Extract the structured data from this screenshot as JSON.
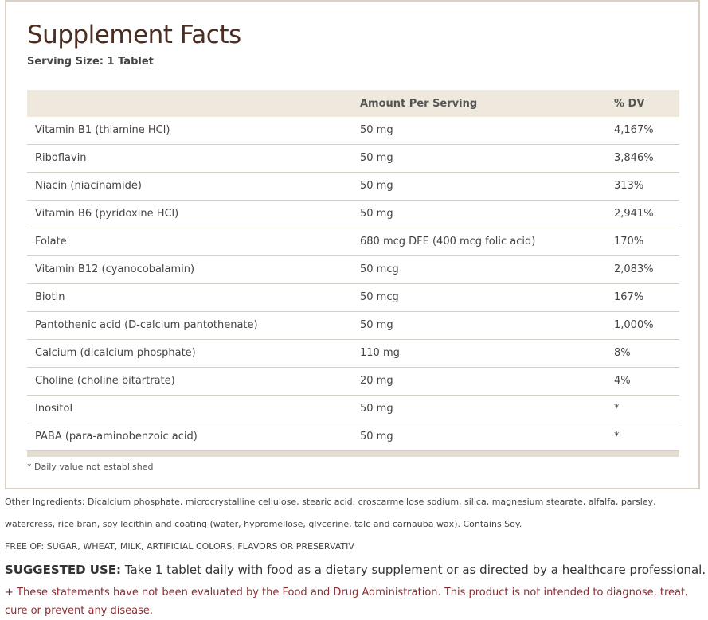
{
  "title": "Supplement Facts",
  "serving_size": "Serving Size: 1 Tablet",
  "table": {
    "headers": [
      "",
      "Amount Per Serving",
      "% DV"
    ],
    "rows": [
      {
        "name": "Vitamin B1 (thiamine HCl)",
        "amount": "50 mg",
        "dv": "4,167%"
      },
      {
        "name": "Riboflavin",
        "amount": "50 mg",
        "dv": "3,846%"
      },
      {
        "name": "Niacin (niacinamide)",
        "amount": "50 mg",
        "dv": "313%"
      },
      {
        "name": "Vitamin B6 (pyridoxine HCl)",
        "amount": "50 mg",
        "dv": "2,941%"
      },
      {
        "name": "Folate",
        "amount": "680 mcg DFE (400 mcg folic acid)",
        "dv": "170%"
      },
      {
        "name": "Vitamin B12 (cyanocobalamin)",
        "amount": "50 mcg",
        "dv": "2,083%"
      },
      {
        "name": "Biotin",
        "amount": "50 mcg",
        "dv": "167%"
      },
      {
        "name": "Pantothenic acid (D-calcium pantothenate)",
        "amount": "50 mg",
        "dv": "1,000%"
      },
      {
        "name": "Calcium (dicalcium phosphate)",
        "amount": "110 mg",
        "dv": "8%"
      },
      {
        "name": "Choline (choline bitartrate)",
        "amount": "20 mg",
        "dv": "4%"
      },
      {
        "name": "Inositol",
        "amount": "50 mg",
        "dv": "*"
      },
      {
        "name": "PABA (para-aminobenzoic acid)",
        "amount": "50 mg",
        "dv": "*"
      }
    ]
  },
  "footnote": "* Daily value not established",
  "other_ingredients_line1": "Other Ingredients: Dicalcium phosphate, microcrystalline cellulose, stearic acid, croscarmellose sodium, silica, magnesium stearate, alfalfa, parsley,",
  "other_ingredients_line2": "watercress, rice bran, soy lecithin and coating (water, hypromellose, glycerine, talc and carnauba wax). Contains Soy.",
  "free_of": "FREE OF: SUGAR, WHEAT, MILK, ARTIFICIAL COLORS, FLAVORS OR PRESERVATIV",
  "suggested_use": {
    "label": "SUGGESTED USE:",
    "text": " Take 1 tablet daily with food as a dietary supplement or as directed by a healthcare professional."
  },
  "disclaimer": "+ These statements have not been evaluated by the Food and Drug Administration. This product is not intended to diagnose, treat, cure or prevent any disease.",
  "colors": {
    "title": "#4b2d22",
    "header_bg": "#eee9dc",
    "border": "#d8d1c4",
    "disclaimer": "#8b2d33"
  }
}
